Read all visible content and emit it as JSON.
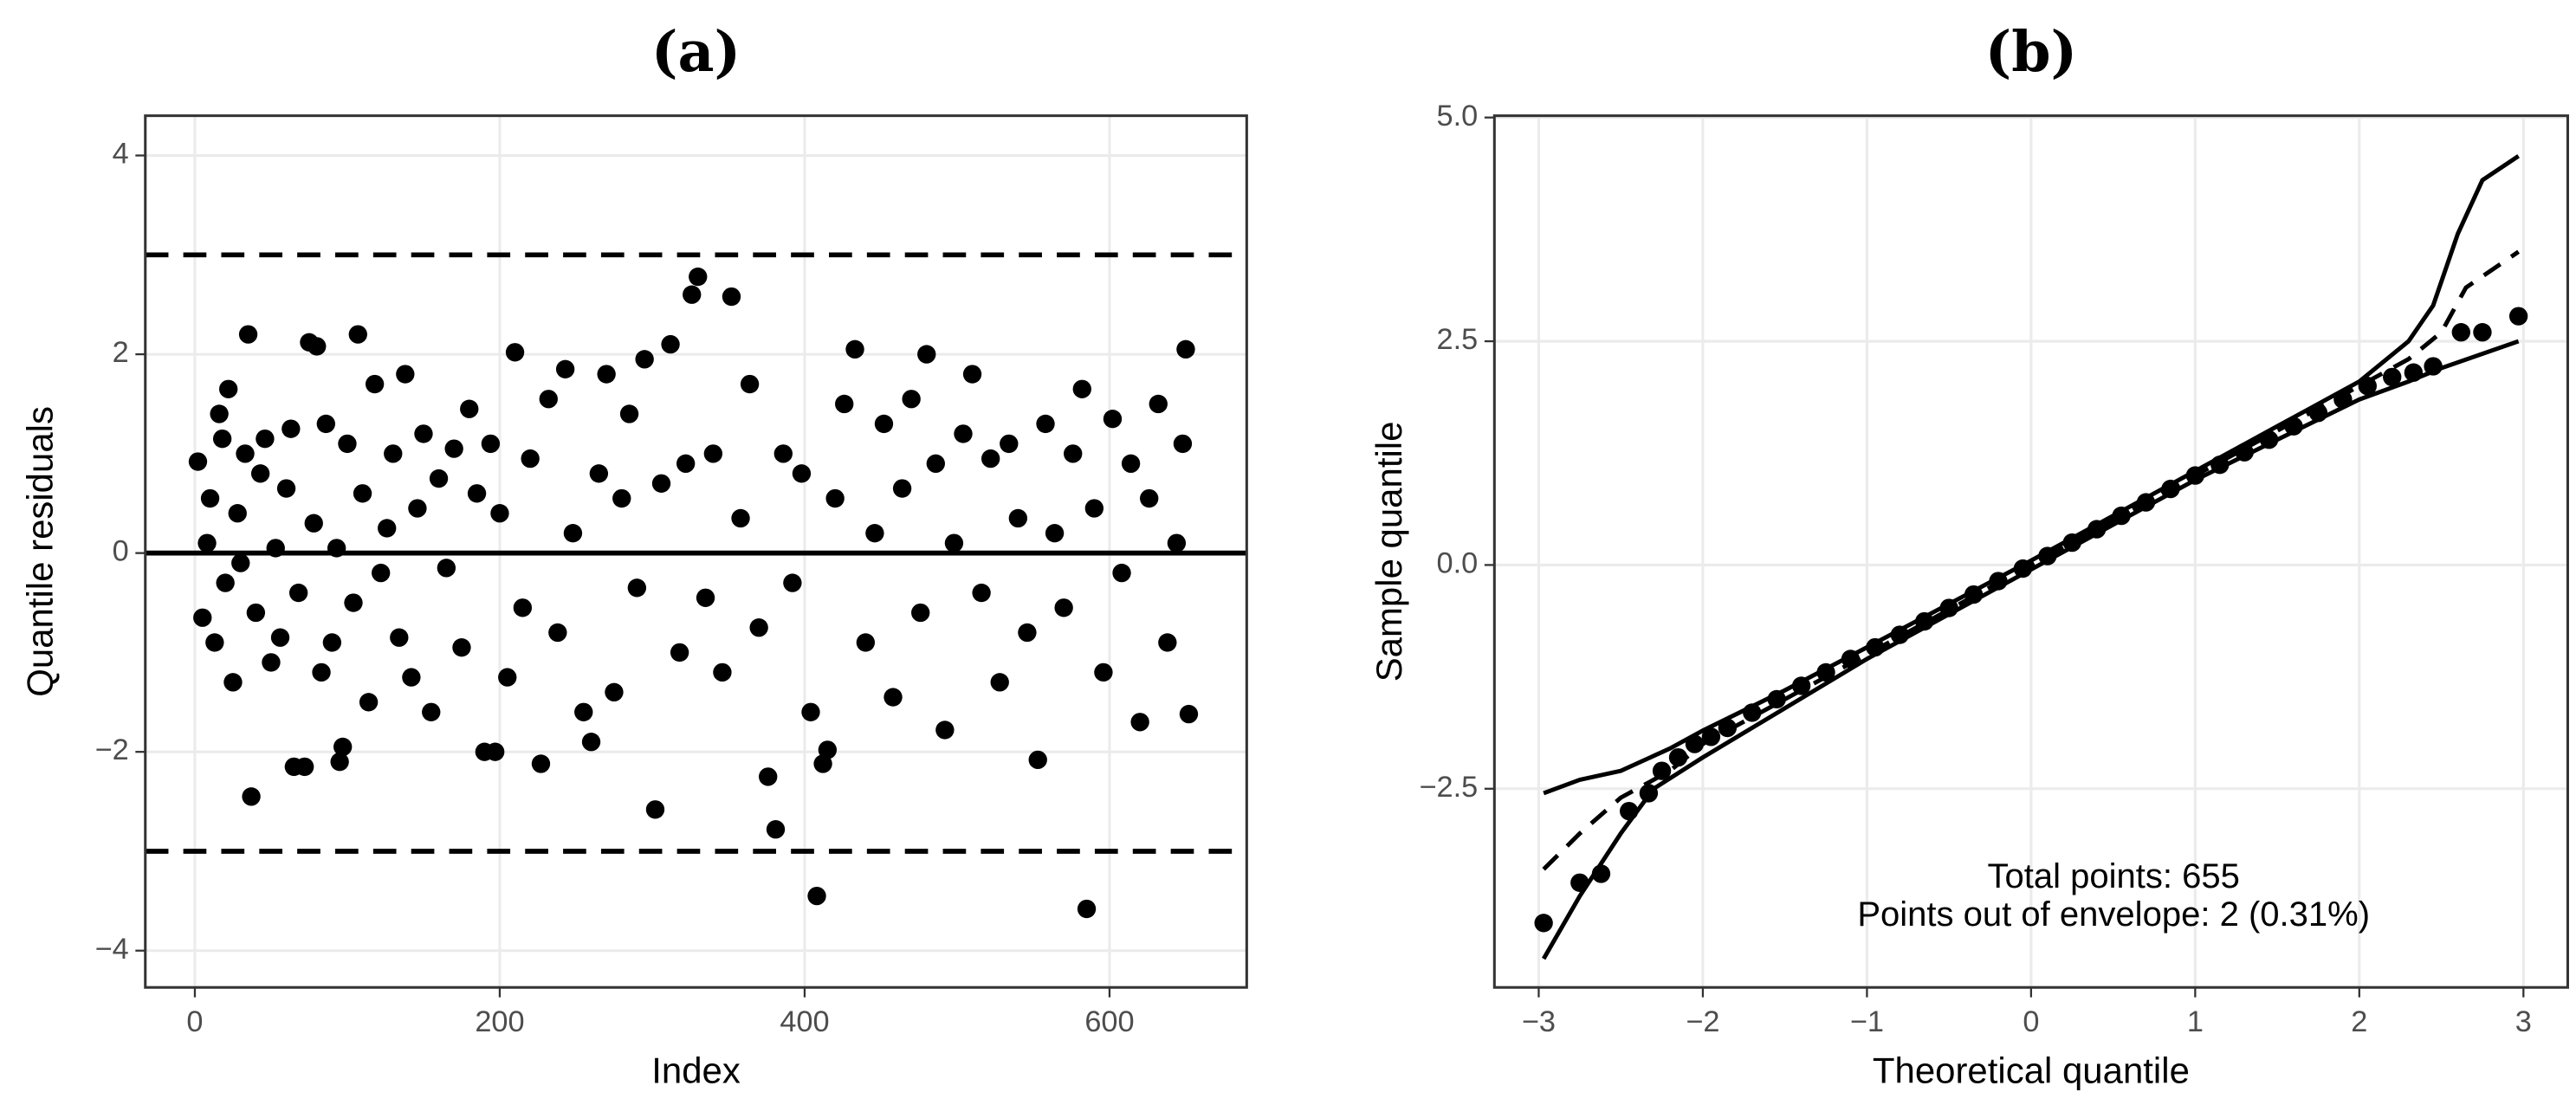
{
  "chart_data": [
    {
      "type": "scatter",
      "title": "(a)",
      "xlabel": "Index",
      "ylabel": "Quantile residuals",
      "xlim": [
        -32.5,
        690
      ],
      "ylim": [
        -4.37,
        4.4
      ],
      "xticks": [
        0,
        200,
        400,
        600
      ],
      "yticks": [
        {
          "value": -4,
          "label": "−4"
        },
        {
          "value": -2,
          "label": "−2"
        },
        0,
        2,
        4
      ],
      "grid": true,
      "color": "#000000",
      "hlines": [
        {
          "value": 3,
          "style": "dashed"
        },
        {
          "value": 0,
          "style": "solid"
        },
        {
          "value": -3,
          "style": "dashed"
        }
      ],
      "x": [
        2,
        5,
        8,
        10,
        13,
        16,
        18,
        20,
        22,
        25,
        28,
        30,
        33,
        35,
        37,
        40,
        43,
        46,
        50,
        53,
        56,
        60,
        63,
        65,
        68,
        72,
        75,
        78,
        80,
        83,
        86,
        90,
        93,
        95,
        97,
        100,
        104,
        107,
        110,
        114,
        118,
        122,
        126,
        130,
        134,
        138,
        142,
        146,
        150,
        155,
        160,
        165,
        170,
        175,
        180,
        185,
        190,
        194,
        197,
        200,
        205,
        210,
        215,
        220,
        227,
        232,
        238,
        243,
        248,
        255,
        260,
        265,
        270,
        275,
        280,
        285,
        290,
        295,
        302,
        306,
        312,
        318,
        322,
        326,
        330,
        335,
        340,
        346,
        352,
        358,
        364,
        370,
        376,
        381,
        386,
        392,
        398,
        404,
        408,
        412,
        415,
        420,
        426,
        433,
        440,
        446,
        452,
        458,
        464,
        470,
        476,
        480,
        486,
        492,
        498,
        504,
        510,
        516,
        522,
        528,
        534,
        540,
        546,
        553,
        558,
        564,
        570,
        576,
        582,
        585,
        590,
        596,
        602,
        608,
        614,
        620,
        626,
        632,
        638,
        644,
        648,
        650,
        652
      ],
      "values": [
        0.92,
        -0.65,
        0.1,
        0.55,
        -0.9,
        1.4,
        1.15,
        -0.3,
        1.65,
        -1.3,
        0.4,
        -0.1,
        1.0,
        2.2,
        -2.45,
        -0.6,
        0.8,
        1.15,
        -1.1,
        0.05,
        -0.85,
        0.65,
        1.25,
        -2.15,
        -0.4,
        -2.15,
        2.12,
        0.3,
        2.08,
        -1.2,
        1.3,
        -0.9,
        0.05,
        -2.1,
        -1.95,
        1.1,
        -0.5,
        2.2,
        0.6,
        -1.5,
        1.7,
        -0.2,
        0.25,
        1.0,
        -0.85,
        1.8,
        -1.25,
        0.45,
        1.2,
        -1.6,
        0.75,
        -0.15,
        1.05,
        -0.95,
        1.45,
        0.6,
        -2.0,
        1.1,
        -2.0,
        0.4,
        -1.25,
        2.02,
        -0.55,
        0.95,
        -2.12,
        1.55,
        -0.8,
        1.85,
        0.2,
        -1.6,
        -1.9,
        0.8,
        1.8,
        -1.4,
        0.55,
        1.4,
        -0.35,
        1.95,
        -2.58,
        0.7,
        2.1,
        -1.0,
        0.9,
        2.6,
        2.78,
        -0.45,
        1.0,
        -1.2,
        2.58,
        0.35,
        1.7,
        -0.75,
        -2.25,
        -2.78,
        1.0,
        -0.3,
        0.8,
        -1.6,
        -3.45,
        -2.12,
        -1.98,
        0.55,
        1.5,
        2.05,
        -0.9,
        0.2,
        1.3,
        -1.45,
        0.65,
        1.55,
        -0.6,
        2.0,
        0.9,
        -1.78,
        0.1,
        1.2,
        1.8,
        -0.4,
        0.95,
        -1.3,
        1.1,
        0.35,
        -0.8,
        -2.08,
        1.3,
        0.2,
        -0.55,
        1.0,
        1.65,
        -3.58,
        0.45,
        -1.2,
        1.35,
        -0.2,
        0.9,
        -1.7,
        0.55,
        1.5,
        -0.9,
        0.1,
        1.1,
        2.05,
        -1.62
      ]
    },
    {
      "type": "qq",
      "title": "(b)",
      "xlabel": "Theoretical quantile",
      "ylabel": "Sample quantile",
      "xlim": [
        -3.27,
        3.27
      ],
      "ylim": [
        -4.72,
        5.02
      ],
      "xticks": [
        {
          "value": -3,
          "label": "−3"
        },
        {
          "value": -2,
          "label": "−2"
        },
        {
          "value": -1,
          "label": "−1"
        },
        0,
        1,
        2,
        3
      ],
      "yticks": [
        {
          "value": -2.5,
          "label": "−2.5"
        },
        {
          "value": 0,
          "label": "0.0"
        },
        2.5,
        {
          "value": 5,
          "label": "5.0"
        }
      ],
      "grid": true,
      "color": "#000000",
      "annotations": [
        "Total points: 655",
        "Points out of envelope: 2 (0.31%)"
      ],
      "x": [
        -2.97,
        -2.75,
        -2.62,
        -2.45,
        -2.33,
        -2.25,
        -2.15,
        -2.05,
        -1.95,
        -1.85,
        -1.7,
        -1.55,
        -1.4,
        -1.25,
        -1.1,
        -0.95,
        -0.8,
        -0.65,
        -0.5,
        -0.35,
        -0.2,
        -0.05,
        0.1,
        0.25,
        0.4,
        0.55,
        0.7,
        0.85,
        1.0,
        1.15,
        1.3,
        1.45,
        1.6,
        1.75,
        1.9,
        2.05,
        2.2,
        2.33,
        2.45,
        2.62,
        2.75,
        2.97
      ],
      "values": [
        -4.0,
        -3.55,
        -3.45,
        -2.75,
        -2.55,
        -2.3,
        -2.15,
        -2.0,
        -1.92,
        -1.82,
        -1.65,
        -1.5,
        -1.35,
        -1.2,
        -1.05,
        -0.92,
        -0.78,
        -0.63,
        -0.48,
        -0.33,
        -0.18,
        -0.04,
        0.1,
        0.25,
        0.4,
        0.55,
        0.7,
        0.85,
        1.0,
        1.12,
        1.26,
        1.4,
        1.55,
        1.7,
        1.85,
        2.0,
        2.1,
        2.15,
        2.22,
        2.6,
        2.6,
        2.78
      ],
      "envelope": [
        {
          "style": "solid",
          "x": [
            -2.97,
            -2.75,
            -2.5,
            -2.2,
            -2,
            -1.5,
            -1,
            0,
            1,
            1.5,
            2,
            2.3,
            2.45,
            2.6,
            2.75,
            2.97
          ],
          "values": [
            -2.55,
            -2.4,
            -2.3,
            -2.05,
            -1.85,
            -1.4,
            -0.92,
            0.05,
            1.05,
            1.55,
            2.05,
            2.5,
            2.9,
            3.7,
            4.3,
            4.57
          ]
        },
        {
          "style": "dashed",
          "x": [
            -2.97,
            -2.75,
            -2.5,
            -2.2,
            -2,
            -1,
            0,
            1,
            2,
            2.3,
            2.5,
            2.65,
            2.97
          ],
          "values": [
            -3.4,
            -3.0,
            -2.6,
            -2.3,
            -2.0,
            -1.0,
            0,
            1.0,
            2.0,
            2.3,
            2.6,
            3.1,
            3.5
          ]
        },
        {
          "style": "solid",
          "x": [
            -2.97,
            -2.75,
            -2.5,
            -2.3,
            -2,
            -1,
            0,
            1,
            2,
            2.3,
            2.5,
            2.97
          ],
          "values": [
            -4.4,
            -3.7,
            -3.0,
            -2.5,
            -2.15,
            -1.05,
            -0.05,
            0.95,
            1.85,
            2.05,
            2.2,
            2.5
          ]
        }
      ]
    }
  ]
}
